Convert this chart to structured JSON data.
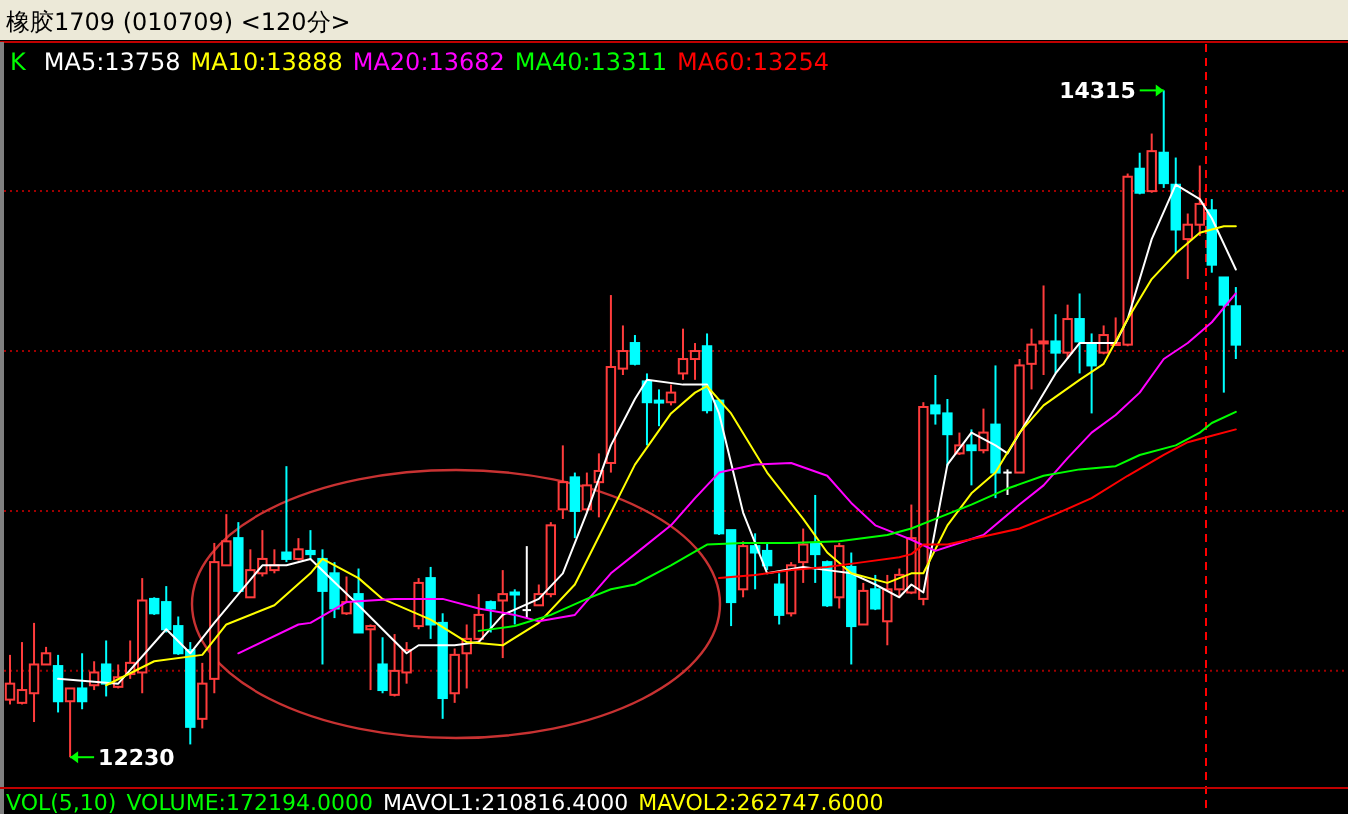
{
  "chart_data": {
    "type": "candlestick",
    "title": "橡胶1709 (010709) <120分>",
    "legend_title": "K",
    "legend": "top left",
    "grid": "y",
    "categories": [
      null,
      null,
      null,
      null,
      null,
      null,
      null,
      null,
      null,
      null,
      null,
      null,
      null,
      null,
      null,
      null,
      null,
      null,
      null,
      null,
      null,
      null,
      null,
      null,
      null,
      null,
      null,
      null,
      null,
      null,
      null,
      null,
      null,
      null,
      null,
      null,
      null,
      null,
      null,
      null,
      null,
      null,
      null,
      null,
      null,
      null,
      null,
      null,
      null,
      null,
      null,
      null,
      null,
      null,
      null,
      null,
      null,
      null,
      null,
      null,
      null,
      null,
      null,
      null,
      null,
      null,
      null,
      null,
      null,
      null,
      null,
      null,
      null,
      null,
      null,
      null,
      null,
      null,
      null,
      null,
      null,
      null,
      null,
      null,
      null,
      null,
      null,
      null,
      null,
      null,
      null,
      null,
      null,
      null,
      null,
      null,
      null,
      null,
      null,
      null,
      null,
      null,
      null
    ],
    "ohlc": [
      [
        12410,
        12550,
        12395,
        12460
      ],
      [
        12400,
        12590,
        12395,
        12440
      ],
      [
        12430,
        12650,
        12340,
        12520
      ],
      [
        12520,
        12575,
        12520,
        12555
      ],
      [
        12515,
        12550,
        12370,
        12405
      ],
      [
        12405,
        12445,
        12230,
        12445
      ],
      [
        12445,
        12555,
        12380,
        12405
      ],
      [
        12455,
        12530,
        12440,
        12495
      ],
      [
        12520,
        12595,
        12420,
        12460
      ],
      [
        12450,
        12520,
        12445,
        12480
      ],
      [
        12490,
        12595,
        12475,
        12525
      ],
      [
        12495,
        12790,
        12430,
        12720
      ],
      [
        12725,
        12730,
        12675,
        12680
      ],
      [
        12715,
        12765,
        12620,
        12630
      ],
      [
        12640,
        12670,
        12550,
        12555
      ],
      [
        12565,
        12590,
        12270,
        12325
      ],
      [
        12350,
        12525,
        12320,
        12460
      ],
      [
        12475,
        12900,
        12430,
        12840
      ],
      [
        12830,
        12990,
        12830,
        12905
      ],
      [
        12915,
        12965,
        12745,
        12750
      ],
      [
        12730,
        12880,
        12730,
        12815
      ],
      [
        12805,
        12940,
        12795,
        12850
      ],
      [
        12815,
        12880,
        12805,
        12830
      ],
      [
        12870,
        13140,
        12840,
        12850
      ],
      [
        12850,
        12915,
        12845,
        12880
      ],
      [
        12875,
        12940,
        12850,
        12865
      ],
      [
        12850,
        12880,
        12520,
        12750
      ],
      [
        12805,
        12840,
        12665,
        12695
      ],
      [
        12680,
        12795,
        12675,
        12715
      ],
      [
        12740,
        12820,
        12620,
        12620
      ],
      [
        12630,
        12645,
        12440,
        12640
      ],
      [
        12520,
        12605,
        12430,
        12440
      ],
      [
        12425,
        12615,
        12420,
        12500
      ],
      [
        12495,
        12590,
        12460,
        12565
      ],
      [
        12640,
        12790,
        12630,
        12775
      ],
      [
        12790,
        12825,
        12600,
        12645
      ],
      [
        12650,
        12680,
        12350,
        12415
      ],
      [
        12430,
        12570,
        12400,
        12550
      ],
      [
        12555,
        12645,
        12445,
        12600
      ],
      [
        12600,
        12740,
        12590,
        12675
      ],
      [
        12715,
        12720,
        12620,
        12695
      ],
      [
        12720,
        12815,
        12540,
        12740
      ],
      [
        12745,
        12755,
        12645,
        12740
      ],
      [
        12690,
        12890,
        12665,
        12690
      ],
      [
        12705,
        12770,
        12705,
        12740
      ],
      [
        12740,
        12965,
        12730,
        12955
      ],
      [
        13005,
        13205,
        12975,
        13090
      ],
      [
        13105,
        13120,
        12915,
        13000
      ],
      [
        13005,
        13120,
        12995,
        13080
      ],
      [
        13090,
        13180,
        12980,
        13125
      ],
      [
        13150,
        13675,
        13120,
        13450
      ],
      [
        13445,
        13580,
        13425,
        13500
      ],
      [
        13525,
        13550,
        13455,
        13460
      ],
      [
        13405,
        13430,
        13205,
        13340
      ],
      [
        13345,
        13380,
        13265,
        13340
      ],
      [
        13340,
        13395,
        13330,
        13370
      ],
      [
        13430,
        13570,
        13410,
        13475
      ],
      [
        13475,
        13525,
        13410,
        13500
      ],
      [
        13515,
        13555,
        13305,
        13315
      ],
      [
        13345,
        13350,
        12925,
        12930
      ],
      [
        12940,
        12940,
        12640,
        12715
      ],
      [
        12755,
        12905,
        12730,
        12890
      ],
      [
        12890,
        12930,
        12755,
        12870
      ],
      [
        12875,
        12900,
        12815,
        12830
      ],
      [
        12770,
        12805,
        12645,
        12675
      ],
      [
        12680,
        12840,
        12670,
        12830
      ],
      [
        12840,
        12945,
        12775,
        12895
      ],
      [
        12900,
        13050,
        12775,
        12865
      ],
      [
        12840,
        12845,
        12700,
        12705
      ],
      [
        12730,
        12900,
        12695,
        12890
      ],
      [
        12825,
        12870,
        12520,
        12640
      ],
      [
        12645,
        12775,
        12645,
        12750
      ],
      [
        12755,
        12800,
        12690,
        12695
      ],
      [
        12655,
        12800,
        12580,
        12755
      ],
      [
        12755,
        12820,
        12730,
        12800
      ],
      [
        12745,
        13020,
        12740,
        12915
      ],
      [
        12725,
        13340,
        12705,
        13325
      ],
      [
        13330,
        13425,
        13270,
        13305
      ],
      [
        13305,
        13350,
        13140,
        13240
      ],
      [
        13180,
        13245,
        13175,
        13205
      ],
      [
        13205,
        13255,
        13080,
        13190
      ],
      [
        13190,
        13320,
        13180,
        13245
      ],
      [
        13270,
        13455,
        13040,
        13120
      ],
      [
        13120,
        13130,
        13050,
        13120
      ],
      [
        13120,
        13475,
        13120,
        13455
      ],
      [
        13460,
        13570,
        13380,
        13520
      ],
      [
        13525,
        13705,
        13425,
        13530
      ],
      [
        13530,
        13615,
        13430,
        13495
      ],
      [
        13495,
        13645,
        13475,
        13600
      ],
      [
        13600,
        13680,
        13430,
        13530
      ],
      [
        13525,
        13555,
        13305,
        13455
      ],
      [
        13495,
        13580,
        13490,
        13550
      ],
      [
        13520,
        13605,
        13520,
        13525
      ],
      [
        13520,
        14055,
        13515,
        14045
      ],
      [
        14070,
        14120,
        13990,
        13995
      ],
      [
        14000,
        14180,
        13995,
        14125
      ],
      [
        14120,
        14315,
        14010,
        14025
      ],
      [
        14020,
        14105,
        13805,
        13880
      ],
      [
        13850,
        13930,
        13725,
        13895
      ],
      [
        13895,
        14080,
        13860,
        13960
      ],
      [
        13940,
        13975,
        13745,
        13770
      ],
      [
        13730,
        13730,
        13370,
        13645
      ],
      [
        13640,
        13700,
        13475,
        13520
      ]
    ],
    "series": [
      {
        "name": "MA5:13758",
        "type": "line",
        "color": "#ffffff",
        "values": [
          null,
          null,
          null,
          null,
          12475,
          null,
          null,
          null,
          null,
          12460,
          null,
          null,
          null,
          12630,
          null,
          12555,
          null,
          12650,
          null,
          null,
          null,
          12830,
          null,
          12830,
          null,
          12850,
          null,
          null,
          null,
          12705,
          null,
          null,
          null,
          12555,
          12580,
          null,
          null,
          12580,
          null,
          12590,
          null,
          12675,
          null,
          null,
          12725,
          null,
          12805,
          null,
          12995,
          null,
          13205,
          null,
          13350,
          13410,
          null,
          null,
          13395,
          null,
          13395,
          13305,
          null,
          12995,
          null,
          12805,
          null,
          null,
          12825,
          null,
          12815,
          null,
          12805,
          null,
          12770,
          null,
          12730,
          12770,
          12745,
          null,
          13145,
          null,
          13245,
          null,
          13205,
          13180,
          null,
          13305,
          null,
          13430,
          null,
          13525,
          null,
          null,
          13525,
          13600,
          null,
          13850,
          null,
          14020,
          null,
          13975,
          13915,
          null,
          13755
        ]
      },
      {
        "name": "MA10:13888",
        "type": "line",
        "color": "#ffff00",
        "values": [
          null,
          null,
          null,
          null,
          null,
          null,
          null,
          null,
          12455,
          null,
          null,
          null,
          12530,
          null,
          null,
          null,
          12550,
          null,
          12645,
          null,
          null,
          null,
          12705,
          null,
          null,
          12805,
          12850,
          null,
          null,
          12790,
          null,
          12725,
          null,
          null,
          null,
          12660,
          null,
          null,
          12590,
          null,
          null,
          12580,
          null,
          null,
          12650,
          null,
          null,
          12770,
          null,
          null,
          12995,
          null,
          13145,
          null,
          null,
          13305,
          null,
          13370,
          13390,
          null,
          13305,
          null,
          null,
          13120,
          null,
          null,
          12975,
          null,
          12870,
          null,
          12805,
          null,
          null,
          12775,
          null,
          12805,
          12805,
          null,
          12955,
          null,
          13055,
          null,
          13120,
          null,
          13245,
          null,
          13330,
          null,
          null,
          13410,
          null,
          13460,
          null,
          13600,
          null,
          13725,
          null,
          13805,
          null,
          13870,
          null,
          13890,
          13890
        ]
      },
      {
        "name": "MA20:13682",
        "type": "line",
        "color": "#ff00ff",
        "values": [
          null,
          null,
          null,
          null,
          null,
          null,
          null,
          null,
          null,
          null,
          null,
          null,
          null,
          null,
          null,
          null,
          null,
          null,
          null,
          12555,
          null,
          null,
          null,
          null,
          12645,
          12650,
          null,
          null,
          12715,
          null,
          null,
          null,
          12725,
          null,
          null,
          null,
          12725,
          null,
          null,
          12695,
          null,
          null,
          12675,
          null,
          12655,
          null,
          null,
          12675,
          null,
          null,
          12805,
          null,
          12865,
          null,
          null,
          12955,
          null,
          13040,
          null,
          13120,
          null,
          null,
          13145,
          null,
          null,
          13150,
          null,
          null,
          13110,
          null,
          13025,
          null,
          12955,
          null,
          12925,
          12910,
          null,
          12875,
          null,
          12900,
          null,
          12925,
          null,
          null,
          13020,
          null,
          13080,
          null,
          13165,
          null,
          13245,
          null,
          13300,
          null,
          13370,
          null,
          13475,
          null,
          13525,
          null,
          13590,
          null,
          13680
        ]
      },
      {
        "name": "MA40:13311",
        "type": "line",
        "color": "#00ff00",
        "values": [
          null,
          null,
          null,
          null,
          null,
          null,
          null,
          null,
          null,
          null,
          null,
          null,
          null,
          null,
          null,
          null,
          null,
          null,
          null,
          null,
          null,
          null,
          null,
          null,
          null,
          null,
          null,
          null,
          null,
          null,
          null,
          null,
          null,
          null,
          null,
          null,
          null,
          null,
          null,
          12625,
          null,
          null,
          12640,
          null,
          null,
          12675,
          null,
          null,
          12725,
          null,
          12755,
          null,
          12770,
          null,
          null,
          12830,
          null,
          null,
          12895,
          null,
          null,
          12900,
          null,
          null,
          null,
          12900,
          null,
          null,
          null,
          12905,
          null,
          null,
          null,
          12925,
          null,
          12945,
          null,
          12975,
          null,
          null,
          13020,
          null,
          null,
          13070,
          null,
          null,
          13110,
          null,
          null,
          13130,
          null,
          null,
          13140,
          null,
          13175,
          null,
          null,
          13205,
          null,
          13245,
          13275,
          null,
          13310
        ]
      },
      {
        "name": "MA60:13254",
        "type": "line",
        "color": "#ff0000",
        "values": [
          null,
          null,
          null,
          null,
          null,
          null,
          null,
          null,
          null,
          null,
          null,
          null,
          null,
          null,
          null,
          null,
          null,
          null,
          null,
          null,
          null,
          null,
          null,
          null,
          null,
          null,
          null,
          null,
          null,
          null,
          null,
          null,
          null,
          null,
          null,
          null,
          null,
          null,
          null,
          null,
          null,
          null,
          null,
          null,
          null,
          null,
          null,
          null,
          null,
          null,
          null,
          null,
          null,
          null,
          null,
          null,
          null,
          null,
          null,
          12790,
          null,
          null,
          12800,
          null,
          null,
          12815,
          null,
          null,
          12825,
          null,
          null,
          12840,
          null,
          null,
          12855,
          12865,
          12895,
          null,
          12895,
          null,
          null,
          12920,
          null,
          null,
          12945,
          null,
          null,
          12990,
          null,
          null,
          13040,
          null,
          null,
          13110,
          null,
          null,
          13175,
          null,
          13215,
          null,
          13235,
          null,
          13255
        ]
      }
    ],
    "ylim": [
      12140,
      14460
    ],
    "yticks": [
      {
        "value": 12500,
        "label": null
      },
      {
        "value": 13000,
        "label": null
      },
      {
        "value": 13500,
        "label": null
      },
      {
        "value": 14000,
        "label": null
      }
    ],
    "annotations": [
      "14315",
      "12230",
      "VOL(5,10)",
      "VOLUME:172194.0000",
      "MAVOL1:210816.4000",
      "MAVOL2:262747.6000"
    ]
  }
}
